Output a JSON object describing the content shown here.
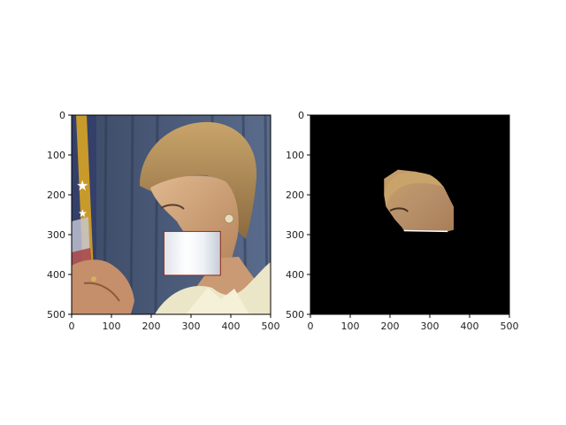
{
  "chart_data": [
    {
      "type": "image",
      "panel": "left",
      "content": "photo with a rectangular white patch pasted over the lower face",
      "xlim": [
        0,
        500
      ],
      "ylim": [
        500,
        0
      ],
      "xticks": [
        "0",
        "100",
        "200",
        "300",
        "400",
        "500"
      ],
      "yticks": [
        "0",
        "100",
        "200",
        "300",
        "400",
        "500"
      ],
      "overlay_patch": {
        "x0": 232,
        "y0": 292,
        "x1": 374,
        "y1": 402,
        "color": "#f2f3f5"
      }
    },
    {
      "type": "image",
      "panel": "right",
      "content": "black mask showing only the segmented upper-face region",
      "xlim": [
        0,
        500
      ],
      "ylim": [
        500,
        0
      ],
      "xticks": [
        "0",
        "100",
        "200",
        "300",
        "400",
        "500"
      ],
      "yticks": [
        "0",
        "100",
        "200",
        "300",
        "400",
        "500"
      ],
      "background": "#000000",
      "region_polygon": [
        [
          185,
          160
        ],
        [
          220,
          137
        ],
        [
          265,
          142
        ],
        [
          300,
          150
        ],
        [
          335,
          180
        ],
        [
          360,
          230
        ],
        [
          360,
          288
        ],
        [
          345,
          292
        ],
        [
          235,
          290
        ],
        [
          230,
          282
        ],
        [
          212,
          262
        ],
        [
          190,
          230
        ],
        [
          185,
          200
        ]
      ],
      "region_color": "#b58f6a"
    }
  ]
}
